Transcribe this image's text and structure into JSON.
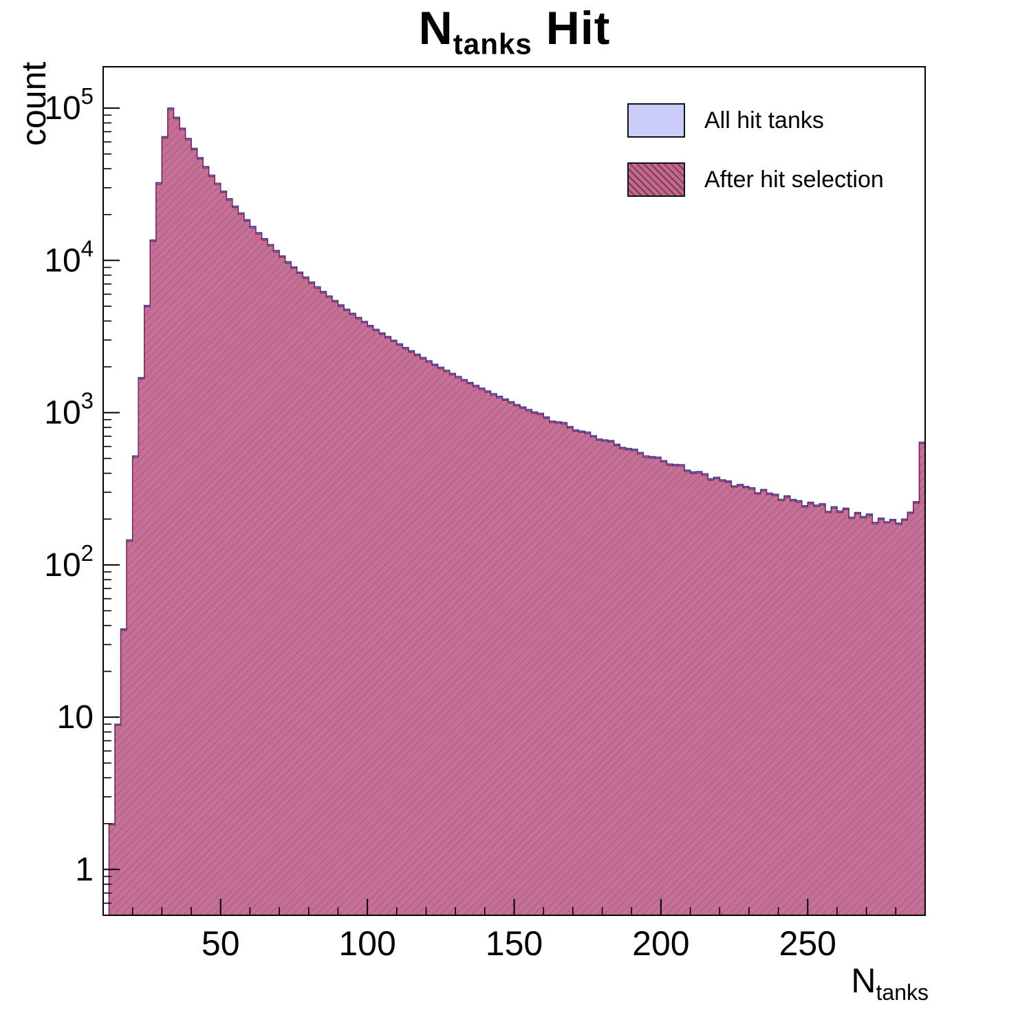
{
  "title_parts": {
    "main": "N",
    "sub": "tanks",
    "suffix": " Hit"
  },
  "axes": {
    "y_label": "count",
    "x_label_main": "N",
    "x_label_sub": "tanks"
  },
  "legend": {
    "items": [
      {
        "label": "All hit tanks",
        "swatch": "solid-lightblue"
      },
      {
        "label": "After hit selection",
        "swatch": "pink-hatched"
      }
    ]
  },
  "chart_data": {
    "type": "bar",
    "style": "step-histogram overlay, logarithmic y axis",
    "title": "N_{tanks} Hit",
    "xlabel": "N_{tanks}",
    "ylabel": "count",
    "xlim": [
      10,
      290
    ],
    "ylim": [
      0.5,
      187000
    ],
    "y_scale": "log",
    "grid": false,
    "legend_position": "top-right",
    "x_major_ticks": [
      50,
      100,
      150,
      200,
      250
    ],
    "x_minor_step": 10,
    "y_major_ticks": [
      1,
      10,
      100,
      1000,
      10000,
      100000
    ],
    "y_tick_labels": [
      {
        "b": "1"
      },
      {
        "b": "10"
      },
      {
        "b": "10",
        "e": "2"
      },
      {
        "b": "10",
        "e": "3"
      },
      {
        "b": "10",
        "e": "4"
      },
      {
        "b": "10",
        "e": "5"
      }
    ],
    "bin_width": 2,
    "bin_centers": [
      13,
      15,
      17,
      19,
      21,
      23,
      25,
      27,
      29,
      31,
      33,
      35,
      37,
      39,
      41,
      43,
      45,
      47,
      49,
      51,
      53,
      55,
      57,
      59,
      61,
      63,
      65,
      67,
      69,
      71,
      73,
      75,
      77,
      79,
      81,
      83,
      85,
      87,
      89,
      91,
      93,
      95,
      97,
      99,
      101,
      103,
      105,
      107,
      109,
      111,
      113,
      115,
      117,
      119,
      121,
      123,
      125,
      127,
      129,
      131,
      133,
      135,
      137,
      139,
      141,
      143,
      145,
      147,
      149,
      151,
      153,
      155,
      157,
      159,
      161,
      163,
      165,
      167,
      169,
      171,
      173,
      175,
      177,
      179,
      181,
      183,
      185,
      187,
      189,
      191,
      193,
      195,
      197,
      199,
      201,
      203,
      205,
      207,
      209,
      211,
      213,
      215,
      217,
      219,
      221,
      223,
      225,
      227,
      229,
      231,
      233,
      235,
      237,
      239,
      241,
      243,
      245,
      247,
      249,
      251,
      253,
      255,
      257,
      259,
      261,
      263,
      265,
      267,
      269,
      271,
      273,
      275,
      277,
      279,
      281,
      283,
      285,
      287,
      289
    ],
    "series": [
      {
        "name": "All hit tanks",
        "fill": "#ccccf9",
        "edge": "#3333a0",
        "values": [
          2,
          9,
          38,
          146,
          520,
          1700,
          5060,
          13600,
          32400,
          65000,
          100000,
          87100,
          73800,
          63200,
          54400,
          47300,
          41300,
          36300,
          32100,
          28500,
          25400,
          22700,
          20500,
          18500,
          16700,
          15200,
          13900,
          12700,
          11600,
          10700,
          9800,
          9060,
          8380,
          7770,
          7210,
          6710,
          6250,
          5830,
          5450,
          5100,
          4780,
          4490,
          4220,
          3970,
          3740,
          3530,
          3340,
          3160,
          2990,
          2830,
          2680,
          2550,
          2420,
          2300,
          2190,
          2080,
          1990,
          1900,
          1810,
          1730,
          1650,
          1580,
          1510,
          1450,
          1390,
          1330,
          1280,
          1230,
          1180,
          1130,
          1090,
          1050,
          1010,
          990,
          937,
          880,
          871,
          860,
          811,
          770,
          757,
          745,
          707,
          670,
          662,
          655,
          620,
          590,
          582,
          575,
          547,
          520,
          514,
          510,
          484,
          460,
          457,
          455,
          419,
          408,
          410,
          397,
          368,
          376,
          362,
          356,
          330,
          338,
          328,
          321,
          298,
          313,
          296,
          291,
          270,
          284,
          269,
          264,
          245,
          258,
          247,
          252,
          225,
          241,
          226,
          236,
          206,
          221,
          208,
          216,
          190,
          203,
          192,
          199,
          188,
          200,
          222,
          260,
          640
        ]
      },
      {
        "name": "After hit selection",
        "fill": "#c4688e",
        "edge": "#7d2552",
        "hatch": true,
        "hatch_color": "#7a3a55",
        "relative_to_series0": 0.98
      }
    ]
  }
}
